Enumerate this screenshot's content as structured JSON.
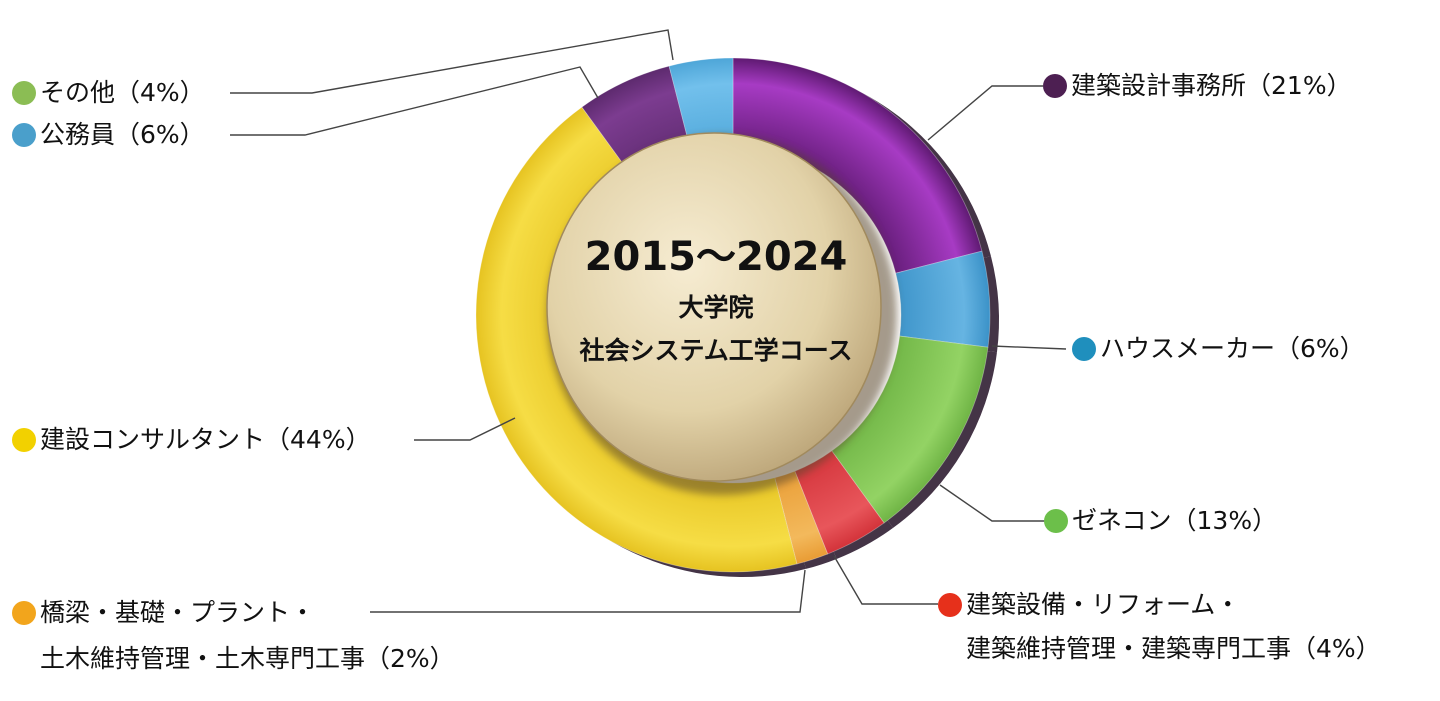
{
  "chart_data": {
    "type": "pie",
    "title": "2015〜2024",
    "subtitle": [
      "大学院",
      "社会システム工学コース"
    ],
    "start_angle_deg": 0,
    "direction": "clockwise",
    "slices": [
      {
        "id": "arch",
        "label": "建築設計事務所",
        "pct_text": "（21%）",
        "value": 21,
        "color": "#5f1a72",
        "highlight": "#a73bc4"
      },
      {
        "id": "house",
        "label": "ハウスメーカー",
        "pct_text": "（6%）",
        "value": 6,
        "color": "#3b92c8",
        "highlight": "#66b4e2"
      },
      {
        "id": "gene",
        "label": "ゼネコン",
        "pct_text": "（13%）",
        "value": 13,
        "color": "#6fb445",
        "highlight": "#93d364"
      },
      {
        "id": "equip",
        "label": "建築設備・リフォーム・",
        "label_line2": "建築維持管理・建築専門工事（4%）",
        "value": 4,
        "color": "#d3333a",
        "highlight": "#e8565b"
      },
      {
        "id": "bridge",
        "label": "橋梁・基礎・プラント・",
        "label_line2": "土木維持管理・土木専門工事（2%）",
        "value": 2,
        "color": "#e99c34",
        "highlight": "#f3b95c"
      },
      {
        "id": "consult",
        "label": "建設コンサルタント",
        "pct_text": "（44%）",
        "value": 44,
        "color": "#e6c321",
        "highlight": "#f6dd45"
      },
      {
        "id": "civil",
        "label": "公務員",
        "pct_text": "（6%）",
        "value": 6,
        "color": "#5d2a6e",
        "highlight": "#7c3c90"
      },
      {
        "id": "other",
        "label": "その他",
        "pct_text": "（4%）",
        "value": 4,
        "color": "#4ea6d8",
        "highlight": "#72c0ec"
      }
    ]
  },
  "legend_colors": {
    "other": "#8bbd54",
    "civil": "#4a9fcb",
    "arch": "#4d1f52",
    "house": "#1f8fbd",
    "gene": "#6cbf4a",
    "equip": "#e6301b",
    "bridge": "#f2a51c",
    "consult": "#f2d100"
  }
}
